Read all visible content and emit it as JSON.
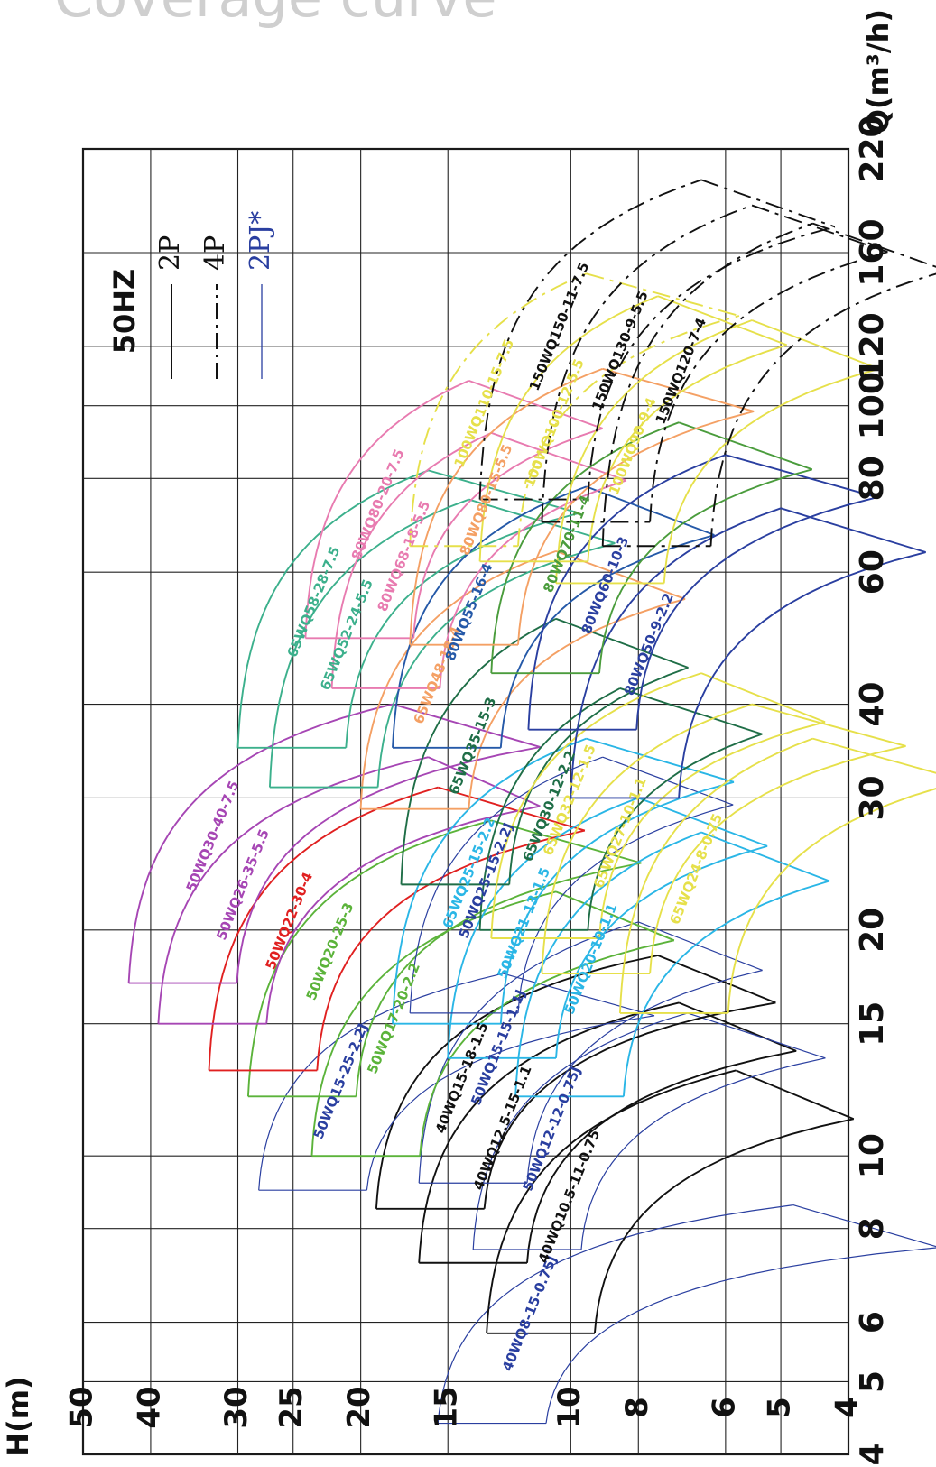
{
  "page_heading": "Coverage curve",
  "chart_data": {
    "type": "line",
    "orientation": "rotated-90",
    "title": "50HZ",
    "xlabel": "Q(m³/h)",
    "ylabel": "H(m)",
    "x_scale": "log",
    "y_scale": "log",
    "xlim": [
      4,
      220
    ],
    "ylim": [
      4,
      50
    ],
    "x_ticks": [
      "4",
      "5",
      "6",
      "8",
      "10",
      "15",
      "20",
      "30",
      "40",
      "60",
      "80",
      "100",
      "120",
      "160",
      "220"
    ],
    "y_ticks": [
      "4",
      "5",
      "6",
      "8",
      "10",
      "15",
      "20",
      "25",
      "30",
      "40",
      "50"
    ],
    "grid": true,
    "legend": {
      "placement": "top-right",
      "title": "50HZ",
      "entries": [
        {
          "label": "2P",
          "style": "solid",
          "color": "#111111"
        },
        {
          "label": "4P",
          "style": "dash-dot",
          "color": "#111111"
        },
        {
          "label": "2PJ*",
          "style": "solid",
          "color": "#2a3fa0"
        }
      ]
    },
    "series": [
      {
        "name": "40WQ8-15-0.75J",
        "style": "2PJ",
        "color": "#2a3fa0",
        "x_min": 4.4,
        "x_max": 8.6,
        "h_max": 15.5,
        "h_min": 4.8
      },
      {
        "name": "40WQ10.5-11-0.75",
        "style": "2P",
        "color": "#111111",
        "x_min": 5.8,
        "x_max": 13.0,
        "h_max": 13.2,
        "h_min": 5.8
      },
      {
        "name": "40WQ12.5-15-1.1",
        "style": "2P",
        "color": "#111111",
        "x_min": 7.2,
        "x_max": 16.0,
        "h_max": 16.5,
        "h_min": 7.0
      },
      {
        "name": "50WQ12-12-0.75J",
        "style": "2PJ",
        "color": "#2a3fa0",
        "x_min": 7.5,
        "x_max": 15.5,
        "h_max": 13.8,
        "h_min": 6.8
      },
      {
        "name": "40WQ15-18-1.5",
        "style": "2P",
        "color": "#111111",
        "x_min": 8.5,
        "x_max": 18.5,
        "h_max": 19.0,
        "h_min": 7.5
      },
      {
        "name": "50WQ15-15-1.1J",
        "style": "2PJ",
        "color": "#2a3fa0",
        "x_min": 9.2,
        "x_max": 20.5,
        "h_max": 16.5,
        "h_min": 8.0
      },
      {
        "name": "50WQ15-25-2.2J",
        "style": "2PJ",
        "color": "#2a3fa0",
        "x_min": 9.0,
        "x_max": 17.5,
        "h_max": 28.0,
        "h_min": 12.5
      },
      {
        "name": "50WQ17-20-2.2",
        "style": "2P",
        "color": "#5bb33a",
        "x_min": 10.0,
        "x_max": 22.5,
        "h_max": 23.5,
        "h_min": 10.5
      },
      {
        "name": "50WQ20-25-3",
        "style": "2P",
        "color": "#5bb33a",
        "x_min": 12.0,
        "x_max": 28.0,
        "h_max": 29.0,
        "h_min": 13.0
      },
      {
        "name": "50WQ22-30-4",
        "style": "2P",
        "color": "#e02020",
        "x_min": 13.0,
        "x_max": 31.0,
        "h_max": 33.0,
        "h_min": 15.5
      },
      {
        "name": "50WQ26-35-5.5",
        "style": "2P",
        "color": "#a646b4",
        "x_min": 15.0,
        "x_max": 34.0,
        "h_max": 39.0,
        "h_min": 16.0
      },
      {
        "name": "50WQ30-40-7.5",
        "style": "2P",
        "color": "#a646b4",
        "x_min": 17.0,
        "x_max": 40.0,
        "h_max": 43.0,
        "h_min": 18.0
      },
      {
        "name": "50WQ20-10-1.1",
        "style": "2P",
        "color": "#2ab6e6",
        "x_min": 12.0,
        "x_max": 27.0,
        "h_max": 12.0,
        "h_min": 6.5
      },
      {
        "name": "50WQ21-13-1.5",
        "style": "2P",
        "color": "#2ab6e6",
        "x_min": 13.5,
        "x_max": 30.0,
        "h_max": 15.0,
        "h_min": 8.0
      },
      {
        "name": "50WQ25-15-2.2J",
        "style": "2PJ",
        "color": "#2a3fa0",
        "x_min": 15.5,
        "x_max": 34.0,
        "h_max": 17.0,
        "h_min": 9.0
      },
      {
        "name": "65WQ25-15-2.2",
        "style": "2P",
        "color": "#2ab6e6",
        "x_min": 15.0,
        "x_max": 36.0,
        "h_max": 18.0,
        "h_min": 9.5
      },
      {
        "name": "65WQ30-12-2.2",
        "style": "2P",
        "color": "#1f6e47",
        "x_min": 20.0,
        "x_max": 42.0,
        "h_max": 13.5,
        "h_min": 8.5
      },
      {
        "name": "65WQ35-15-3",
        "style": "2P",
        "color": "#1f6e47",
        "x_min": 23.0,
        "x_max": 52.0,
        "h_max": 17.5,
        "h_min": 10.5
      },
      {
        "name": "65WQ24-8-0.75",
        "style": "2P",
        "color": "#e6e04a",
        "x_min": 15.5,
        "x_max": 36.0,
        "h_max": 8.5,
        "h_min": 4.5
      },
      {
        "name": "65WQ27-10-1.1",
        "style": "2P",
        "color": "#e6e04a",
        "x_min": 17.5,
        "x_max": 40.0,
        "h_max": 11.0,
        "h_min": 5.5
      },
      {
        "name": "65WQ32-12-1.5",
        "style": "2P",
        "color": "#e6e04a",
        "x_min": 19.5,
        "x_max": 44.0,
        "h_max": 13.0,
        "h_min": 6.5
      },
      {
        "name": "65WQ48-18-4",
        "style": "2P",
        "color": "#f4a064",
        "x_min": 29.0,
        "x_max": 64.0,
        "h_max": 20.0,
        "h_min": 10.5
      },
      {
        "name": "65WQ52-24-5.5",
        "style": "2P",
        "color": "#3cb08c",
        "x_min": 31.0,
        "x_max": 75.0,
        "h_max": 27.0,
        "h_min": 14.0
      },
      {
        "name": "65WQ58-28-7.5",
        "style": "2P",
        "color": "#3cb08c",
        "x_min": 35.0,
        "x_max": 82.0,
        "h_max": 30.0,
        "h_min": 16.0
      },
      {
        "name": "80WQ55-16-4",
        "style": "2P",
        "color": "#2559a8",
        "x_min": 35.0,
        "x_max": 78.0,
        "h_max": 18.0,
        "h_min": 9.5
      },
      {
        "name": "80WQ68-18-5.5",
        "style": "2P",
        "color": "#e87bb0",
        "x_min": 42.0,
        "x_max": 92.0,
        "h_max": 22.0,
        "h_min": 13.0
      },
      {
        "name": "80WQ80-20-7.5",
        "style": "2P",
        "color": "#e87bb0",
        "x_min": 49.0,
        "x_max": 108.0,
        "h_max": 24.0,
        "h_min": 14.0
      },
      {
        "name": "80WQ50-9-2.2",
        "style": "2P",
        "color": "#2a3fa0",
        "x_min": 30.0,
        "x_max": 73.0,
        "h_max": 10.0,
        "h_min": 5.0
      },
      {
        "name": "80WQ60-10-3",
        "style": "2P",
        "color": "#2a3fa0",
        "x_min": 37.0,
        "x_max": 86.0,
        "h_max": 11.5,
        "h_min": 6.0
      },
      {
        "name": "80WQ70-11-4",
        "style": "2P",
        "color": "#4a9c3c",
        "x_min": 44.0,
        "x_max": 95.0,
        "h_max": 13.0,
        "h_min": 7.0
      },
      {
        "name": "80WQ80-15-5.5",
        "style": "2P",
        "color": "#f4a064",
        "x_min": 48.0,
        "x_max": 112.0,
        "h_max": 17.0,
        "h_min": 9.0
      },
      {
        "name": "100WQ90-9-4",
        "style": "2P",
        "color": "#e6e04a",
        "x_min": 58.0,
        "x_max": 130.0,
        "h_max": 10.5,
        "h_min": 5.5
      },
      {
        "name": "100WQ100-12-5.5",
        "style": "2P",
        "color": "#e6e04a",
        "x_min": 62.0,
        "x_max": 140.0,
        "h_max": 13.5,
        "h_min": 7.5
      },
      {
        "name": "100WQ110-15-7.5",
        "style": "4P",
        "color": "#e6e04a",
        "x_min": 65.0,
        "x_max": 150.0,
        "h_max": 17.0,
        "h_min": 9.5
      },
      {
        "name": "150WQ120-7-4",
        "style": "4P",
        "color": "#111111",
        "x_min": 65.0,
        "x_max": 175.0,
        "h_max": 9.0,
        "h_min": 4.5
      },
      {
        "name": "150WQ130-9-5.5",
        "style": "4P",
        "color": "#111111",
        "x_min": 70.0,
        "x_max": 185.0,
        "h_max": 11.0,
        "h_min": 5.5
      },
      {
        "name": "150WQ150-11-7.5",
        "style": "4P",
        "color": "#111111",
        "x_min": 75.0,
        "x_max": 200.0,
        "h_max": 13.5,
        "h_min": 6.5
      }
    ]
  }
}
